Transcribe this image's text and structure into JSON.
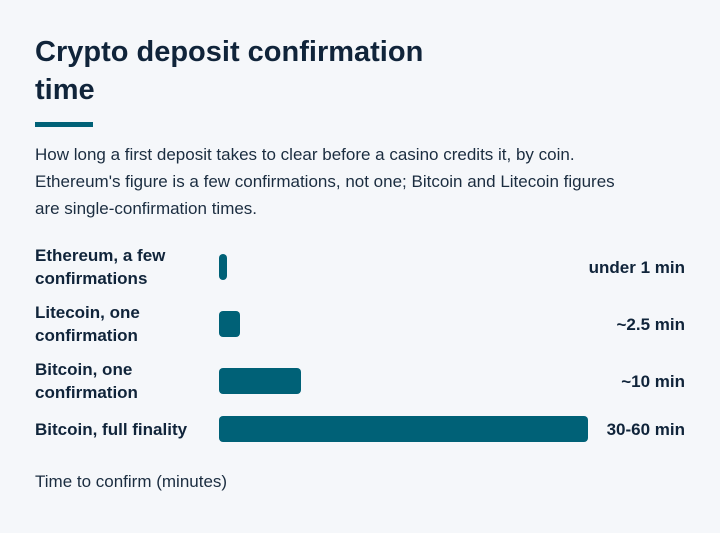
{
  "title": "Crypto deposit confirmation time",
  "subtitle": "How long a first deposit takes to clear before a casino credits it, by coin. Ethereum's figure is a few confirmations, not one; Bitcoin and Litecoin figures are single-confirmation times.",
  "colors": {
    "bar": "#006177",
    "accent": "#006177",
    "text": "#10243a",
    "background": "#f5f7fa"
  },
  "chart_data": {
    "type": "bar",
    "orientation": "horizontal",
    "categories": [
      "Ethereum, a few confirmations",
      "Litecoin, one confirmation",
      "Bitcoin, one confirmation",
      "Bitcoin, full finality"
    ],
    "values": [
      0.5,
      2.5,
      10,
      45
    ],
    "value_labels": [
      "under 1 min",
      "~2.5 min",
      "~10 min",
      "30-60 min"
    ],
    "xlabel": "Time to confirm (minutes)",
    "xlim": [
      0,
      45
    ],
    "grid": false,
    "legend": "none"
  }
}
